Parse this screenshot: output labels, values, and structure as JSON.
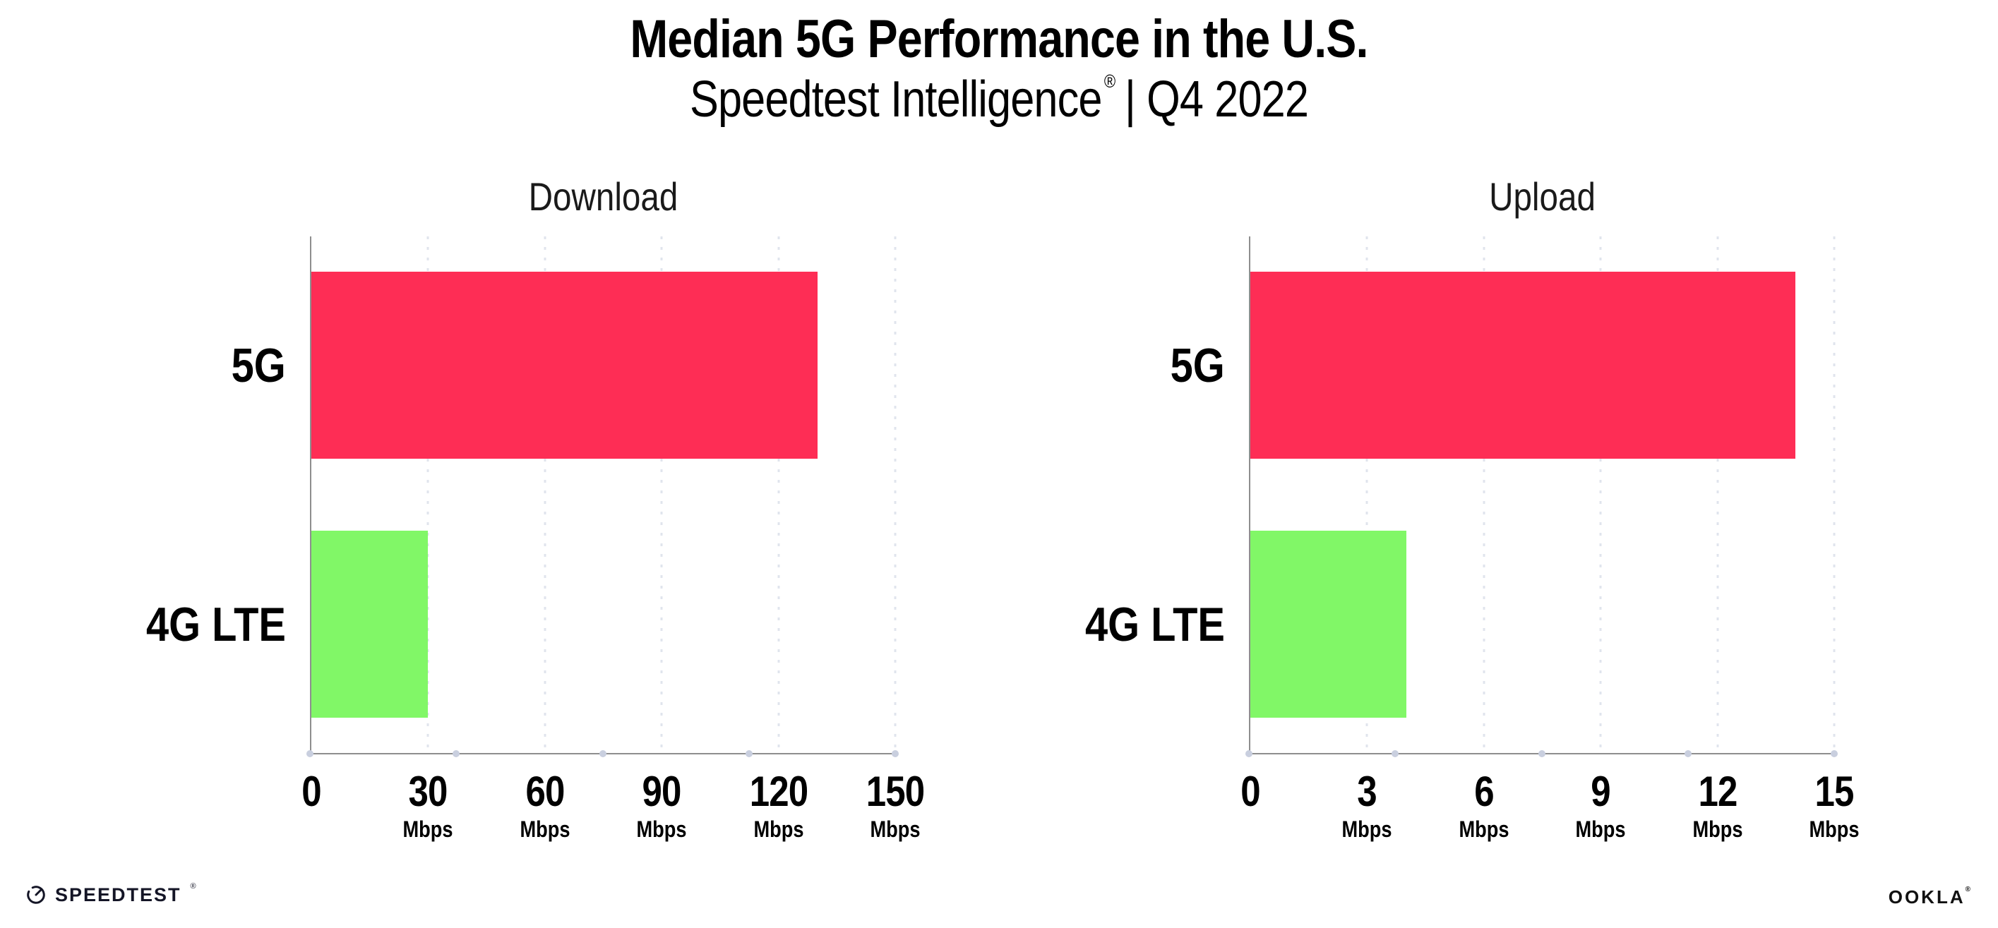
{
  "header": {
    "title": "Median 5G Performance in the U.S.",
    "subtitle_brand": "Speedtest Intelligence",
    "subtitle_reg_mark": "®",
    "subtitle_rest": "| Q4 2022"
  },
  "colors": {
    "bar_5g_pink": "#FE2D55",
    "bar_4g_green": "#81F767",
    "axis_gray": "#8e8e8e",
    "gridline_gray": "#e0e4ed",
    "axis_dot_gray": "#c9cfdf",
    "text_black": "#000000"
  },
  "chart_data": [
    {
      "type": "bar",
      "orientation": "horizontal",
      "title": "Download",
      "categories": [
        "5G",
        "4G LTE"
      ],
      "values": [
        130,
        30
      ],
      "unit": "Mbps",
      "xlim": [
        0,
        150
      ],
      "ticks": [
        0,
        30,
        60,
        90,
        120,
        150
      ],
      "tick_unit": "Mbps",
      "bar_colors": [
        "#FE2D55",
        "#81F767"
      ],
      "grid": "dotted-vertical",
      "legend": "none"
    },
    {
      "type": "bar",
      "orientation": "horizontal",
      "title": "Upload",
      "categories": [
        "5G",
        "4G LTE"
      ],
      "values": [
        14,
        4
      ],
      "unit": "Mbps",
      "xlim": [
        0,
        15
      ],
      "ticks": [
        0,
        3,
        6,
        9,
        12,
        15
      ],
      "tick_unit": "Mbps",
      "bar_colors": [
        "#FE2D55",
        "#81F767"
      ],
      "grid": "dotted-vertical",
      "legend": "none"
    }
  ],
  "footer": {
    "speedtest_label": "SPEEDTEST",
    "speedtest_mark": "®",
    "speedtest_icon": "gauge-icon",
    "ookla_label": "OOKLA",
    "ookla_mark": "®"
  }
}
